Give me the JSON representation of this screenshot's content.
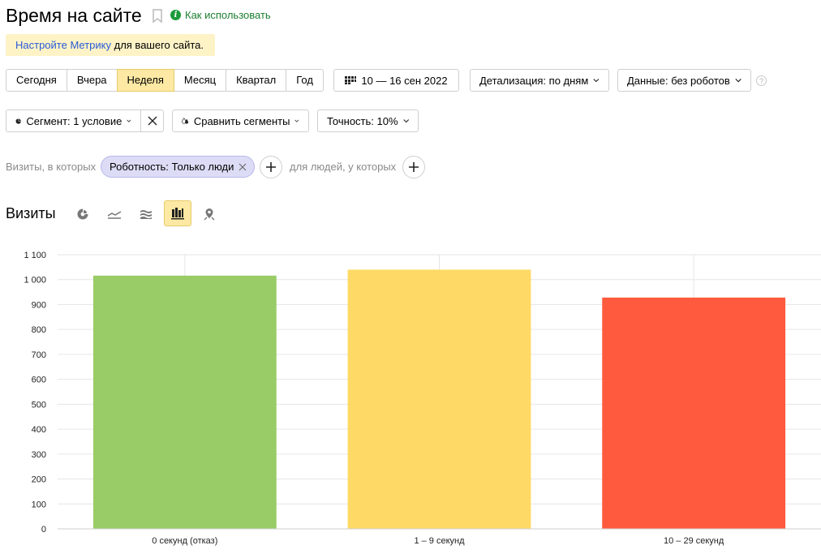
{
  "header": {
    "title": "Время на сайте",
    "help_link": "Как использовать"
  },
  "banner": {
    "link_text": "Настройте Метрику",
    "rest_text": " для вашего сайта."
  },
  "period_buttons": [
    {
      "label": "Сегодня",
      "active": false
    },
    {
      "label": "Вчера",
      "active": false
    },
    {
      "label": "Неделя",
      "active": true
    },
    {
      "label": "Месяц",
      "active": false
    },
    {
      "label": "Квартал",
      "active": false
    },
    {
      "label": "Год",
      "active": false
    }
  ],
  "toolbar": {
    "date_range": "10 — 16 сен 2022",
    "detail": "Детализация: по дням",
    "data": "Данные: без роботов",
    "segment": "Сегмент: 1 условие",
    "compare": "Сравнить сегменты",
    "accuracy": "Точность: 10%"
  },
  "filter": {
    "prefix": "Визиты, в которых",
    "chip": "Роботность: Только люди",
    "people_label": "для людей, у которых"
  },
  "visits": {
    "title": "Визиты",
    "view_icons": [
      "pie-chart-icon",
      "line-chart-icon",
      "area-chart-icon",
      "bar-chart-icon",
      "map-icon"
    ],
    "active_view": "bar-chart-icon"
  },
  "colors": {
    "accent": "#fde9a3",
    "link": "#2a5bd7",
    "help_green": "#1d7e32"
  },
  "chart_data": {
    "type": "bar",
    "categories": [
      "0 секунд (отказ)",
      "1 – 9 секунд",
      "10 – 29 секунд"
    ],
    "values": [
      1016,
      1040,
      928
    ],
    "colors": [
      "#99cc66",
      "#ffd966",
      "#ff5a3d"
    ],
    "ylim": [
      0,
      1100
    ],
    "yticks": [
      0,
      100,
      200,
      300,
      400,
      500,
      600,
      700,
      800,
      900,
      1000,
      1100
    ],
    "ytick_labels": [
      "0",
      "100",
      "200",
      "300",
      "400",
      "500",
      "600",
      "700",
      "800",
      "900",
      "1 000",
      "1 100"
    ],
    "grid": true
  }
}
